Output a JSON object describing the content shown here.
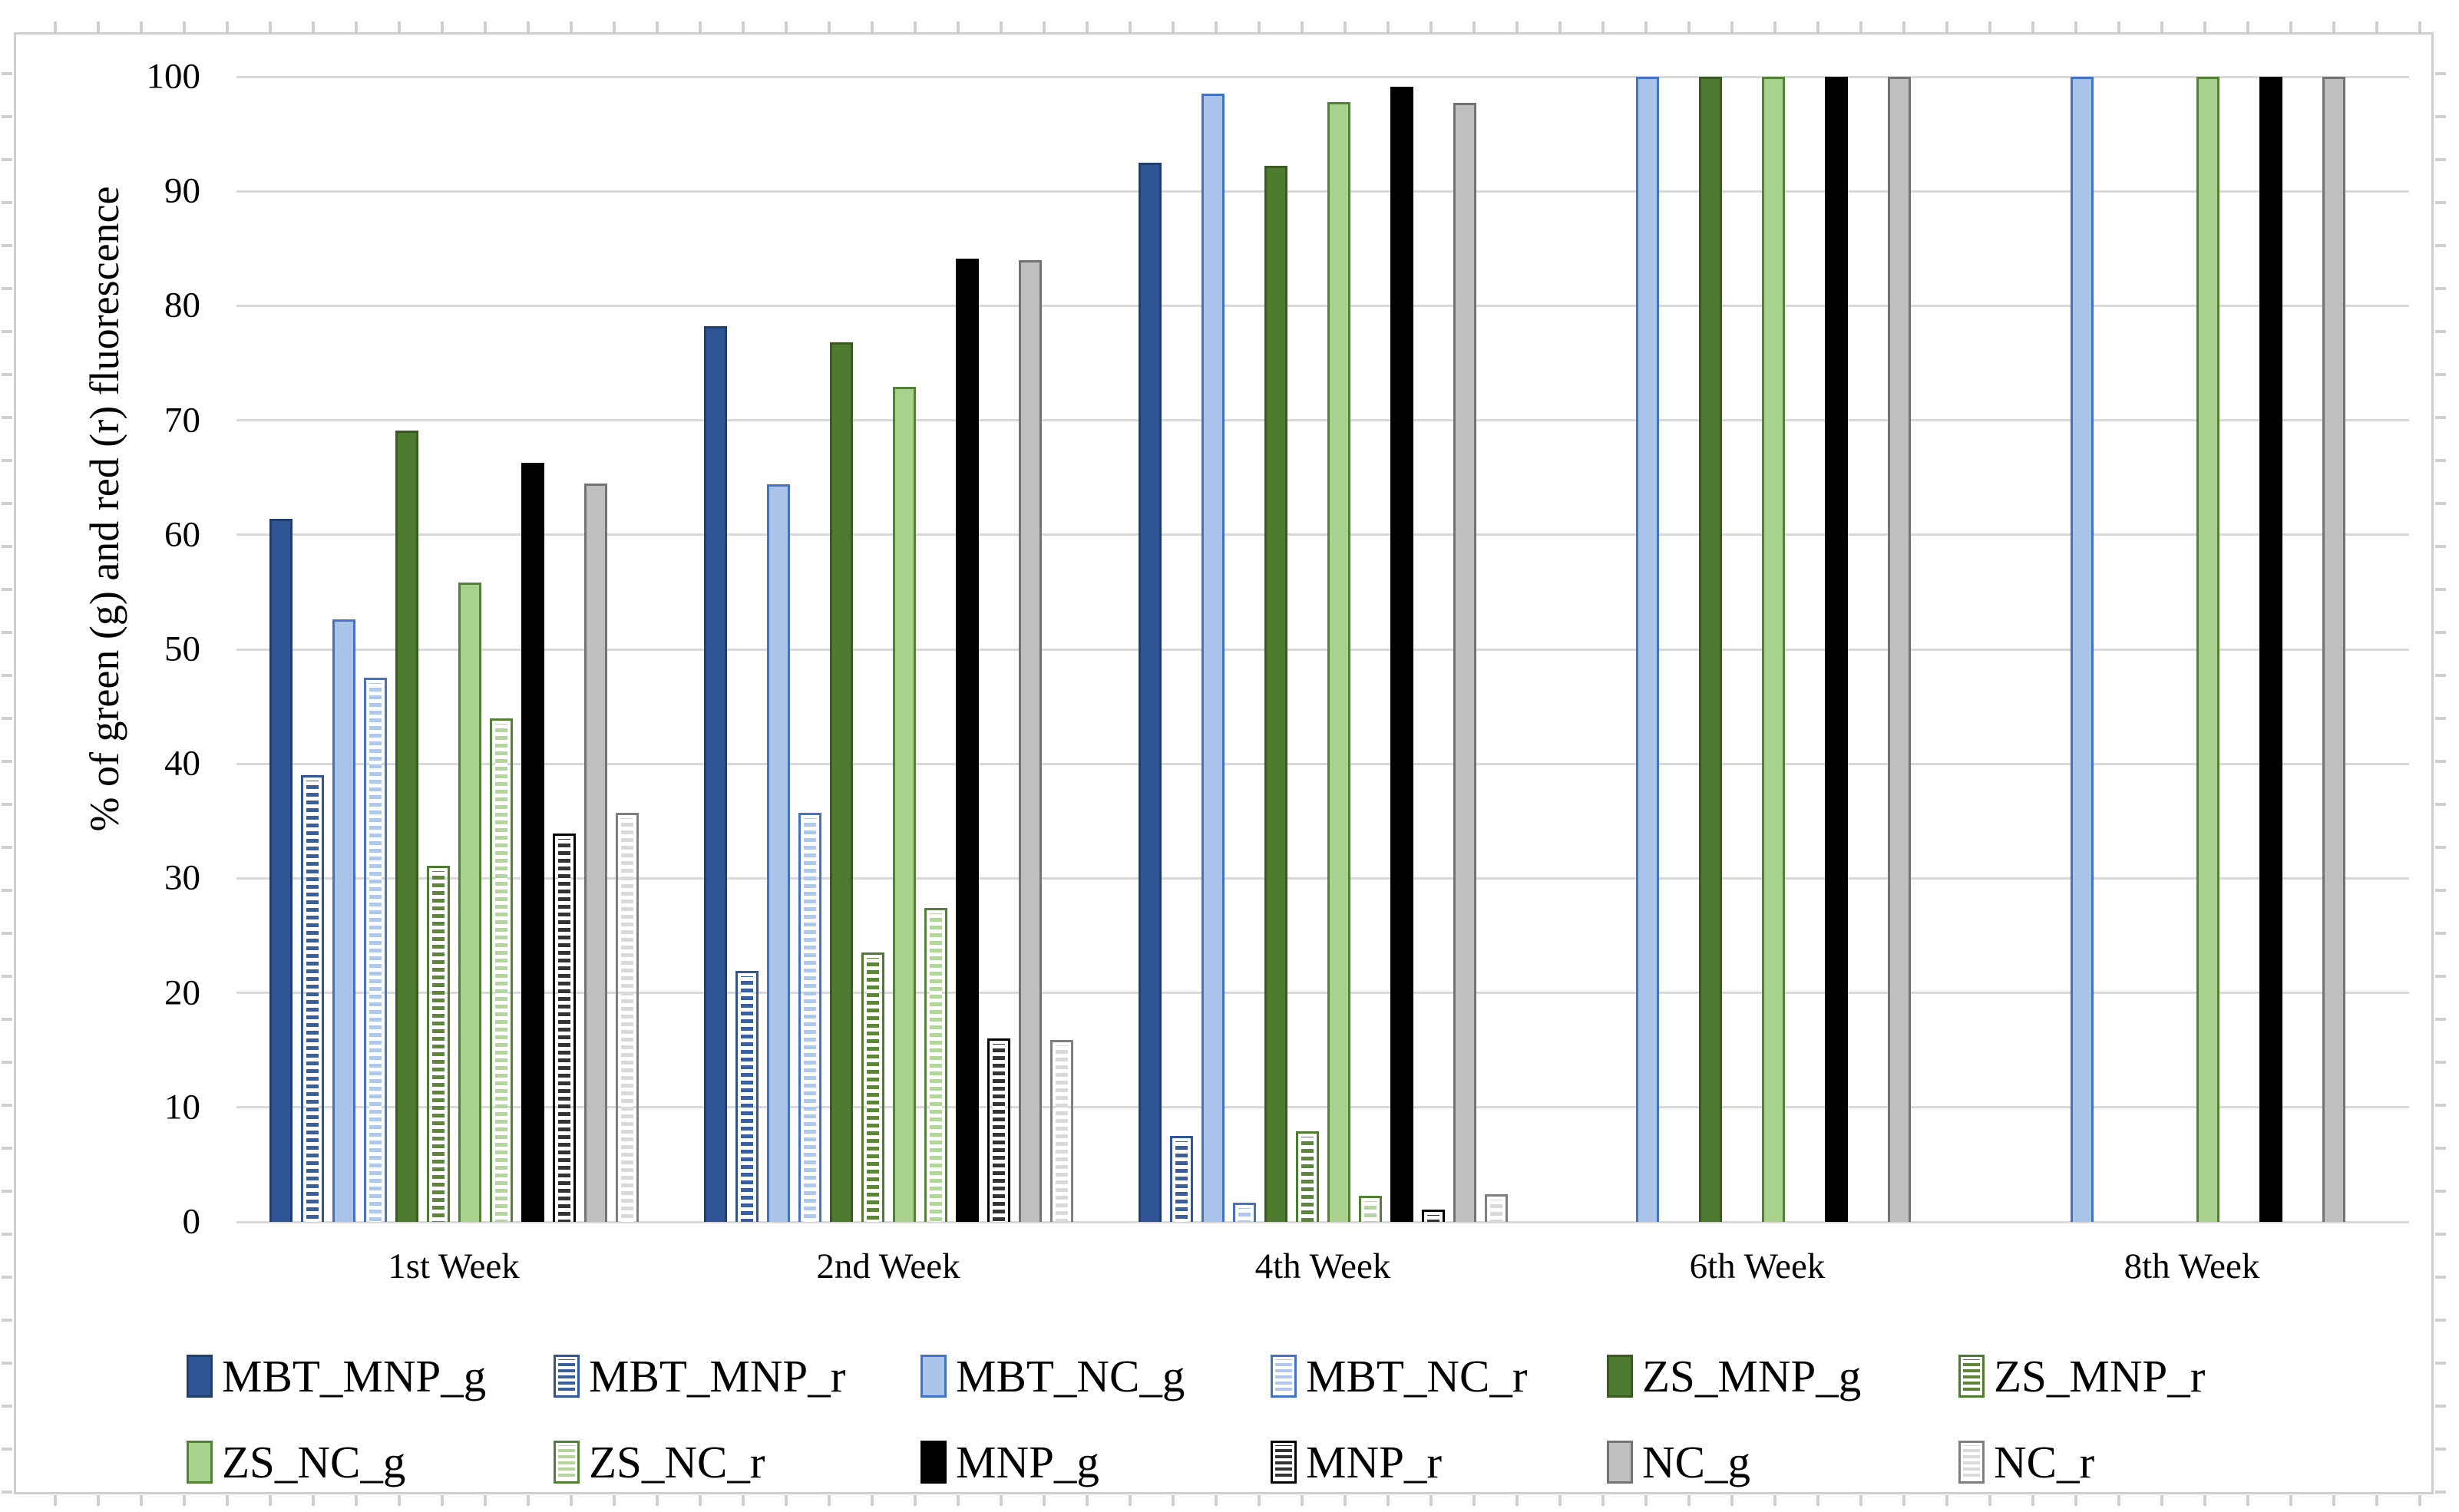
{
  "figure": {
    "y_axis_title": "% of green (g) and red (r) fluorescence",
    "border_color": "#cfcfcf",
    "gridline_color": "#d9d9d9"
  },
  "chart_data": {
    "type": "bar",
    "title": "",
    "xlabel": "",
    "ylabel": "% of green (g) and red (r) fluorescence",
    "ylim": [
      0,
      100
    ],
    "ytick_step": 10,
    "ytick_labels": [
      "0",
      "10",
      "20",
      "30",
      "40",
      "50",
      "60",
      "70",
      "80",
      "90",
      "100"
    ],
    "grid": true,
    "legend_position": "bottom",
    "categories": [
      "1st Week",
      "2nd Week",
      "4th Week",
      "6th Week",
      "8th Week"
    ],
    "series": [
      {
        "name": "MBT_MNP_g",
        "pattern": "solid",
        "fill": "#2F5597",
        "border": "#203F6E",
        "values": [
          61.4,
          78.2,
          92.5,
          0,
          0
        ]
      },
      {
        "name": "MBT_MNP_r",
        "pattern": "stripes",
        "fill": "#3A5F9E",
        "border": "#2F5597",
        "values": [
          39.0,
          21.9,
          7.5,
          0,
          0
        ]
      },
      {
        "name": "MBT_NC_g",
        "pattern": "solid",
        "fill": "#A9C3E9",
        "border": "#4472C4",
        "values": [
          52.6,
          64.4,
          98.5,
          100,
          100
        ]
      },
      {
        "name": "MBT_NC_r",
        "pattern": "stripes",
        "fill": "#AFC8EB",
        "border": "#4472C4",
        "values": [
          47.5,
          35.7,
          1.7,
          0,
          0
        ]
      },
      {
        "name": "ZS_MNP_g",
        "pattern": "solid",
        "fill": "#4E7B2F",
        "border": "#3A5A22",
        "values": [
          69.1,
          76.8,
          92.2,
          100,
          0
        ]
      },
      {
        "name": "ZS_MNP_r",
        "pattern": "stripes",
        "fill": "#5C8638",
        "border": "#4E7B2F",
        "values": [
          31.1,
          23.5,
          7.9,
          0,
          0
        ]
      },
      {
        "name": "ZS_NC_g",
        "pattern": "solid",
        "fill": "#A9D18E",
        "border": "#538135",
        "values": [
          55.8,
          72.9,
          97.8,
          100,
          100
        ]
      },
      {
        "name": "ZS_NC_r",
        "pattern": "stripes",
        "fill": "#B2D69B",
        "border": "#538135",
        "values": [
          44.0,
          27.4,
          2.3,
          0,
          0
        ]
      },
      {
        "name": "MNP_g",
        "pattern": "solid",
        "fill": "#000000",
        "border": "#000000",
        "values": [
          66.3,
          84.1,
          99.1,
          100,
          100
        ]
      },
      {
        "name": "MNP_r",
        "pattern": "stripes",
        "fill": "#333333",
        "border": "#000000",
        "values": [
          33.9,
          16.0,
          1.1,
          0,
          0
        ]
      },
      {
        "name": "NC_g",
        "pattern": "solid",
        "fill": "#BFBFBF",
        "border": "#737373",
        "values": [
          64.5,
          84.0,
          97.7,
          100,
          100
        ]
      },
      {
        "name": "NC_r",
        "pattern": "stripes",
        "fill": "#D9D9D9",
        "border": "#7F7F7F",
        "values": [
          35.7,
          15.9,
          2.4,
          0,
          0
        ]
      }
    ]
  }
}
